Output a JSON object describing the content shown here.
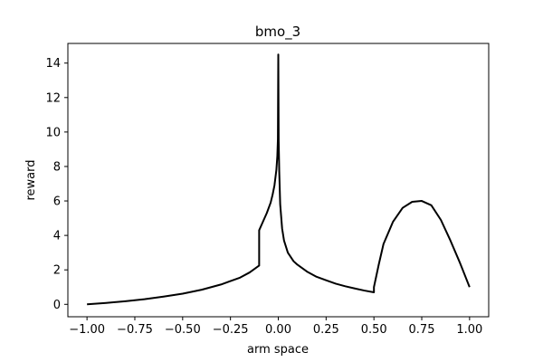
{
  "chart_data": {
    "type": "line",
    "title": "bmo_3",
    "xlabel": "arm space",
    "ylabel": "reward",
    "xlim": [
      -1.1,
      1.1
    ],
    "ylim": [
      -0.72,
      15.14
    ],
    "xticks": [
      -1.0,
      -0.75,
      -0.5,
      -0.25,
      0.0,
      0.25,
      0.5,
      0.75,
      1.0
    ],
    "xtick_labels": [
      "−1.00",
      "−0.75",
      "−0.50",
      "−0.25",
      "0.00",
      "0.25",
      "0.50",
      "0.75",
      "1.00"
    ],
    "yticks": [
      0,
      2,
      4,
      6,
      8,
      10,
      12,
      14
    ],
    "ytick_labels": [
      "0",
      "2",
      "4",
      "6",
      "8",
      "10",
      "12",
      "14"
    ],
    "grid": false,
    "series": [
      {
        "color": "#000000",
        "x": [
          -1.0,
          -0.9,
          -0.8,
          -0.7,
          -0.6,
          -0.5,
          -0.4,
          -0.3,
          -0.2,
          -0.15,
          -0.1,
          -0.1,
          -0.08,
          -0.06,
          -0.04,
          -0.03,
          -0.02,
          -0.01,
          -0.005,
          -0.002,
          0.0,
          0.0,
          0.002,
          0.005,
          0.01,
          0.02,
          0.03,
          0.05,
          0.08,
          0.1,
          0.15,
          0.2,
          0.25,
          0.3,
          0.35,
          0.4,
          0.45,
          0.5,
          0.5,
          0.525,
          0.55,
          0.6,
          0.65,
          0.7,
          0.75,
          0.8,
          0.85,
          0.9,
          0.95,
          1.0
        ],
        "y": [
          0.0,
          0.08,
          0.18,
          0.3,
          0.45,
          0.62,
          0.85,
          1.15,
          1.55,
          1.85,
          2.25,
          4.3,
          4.8,
          5.3,
          5.9,
          6.35,
          6.9,
          7.8,
          8.6,
          9.6,
          14.5,
          14.5,
          9.5,
          7.7,
          5.8,
          4.4,
          3.7,
          3.0,
          2.5,
          2.3,
          1.9,
          1.6,
          1.4,
          1.2,
          1.05,
          0.92,
          0.8,
          0.7,
          1.0,
          2.3,
          3.5,
          4.8,
          5.6,
          5.95,
          6.0,
          5.75,
          4.9,
          3.7,
          2.4,
          1.0
        ]
      }
    ]
  }
}
